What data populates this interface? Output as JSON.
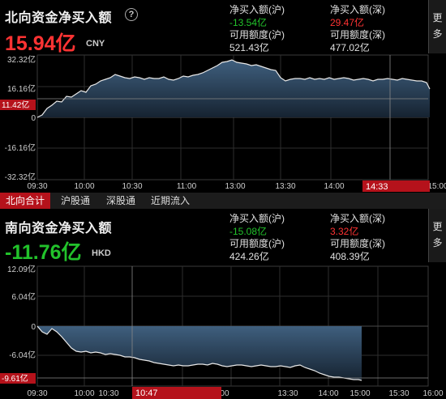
{
  "north": {
    "title": "北向资金净买入额",
    "net_value": "15.94亿",
    "currency": "CNY",
    "stats": [
      {
        "label": "净买入额(沪)",
        "value": "-13.54亿",
        "color": "#22c22b"
      },
      {
        "label": "净买入额(深)",
        "value": "29.47亿",
        "color": "#ff3333"
      },
      {
        "label": "可用额度(沪)",
        "value": "521.43亿",
        "color": "#e0e0e0"
      },
      {
        "label": "可用额度(深)",
        "value": "477.02亿",
        "color": "#e0e0e0"
      }
    ],
    "more_label": [
      "更",
      "多"
    ],
    "y_ticks": [
      "32.32亿",
      "16.16亿",
      "0",
      "-16.16亿",
      "-32.32亿"
    ],
    "x_ticks": [
      "09:30",
      "10:00",
      "10:30",
      "11:00",
      "13:00",
      "13:30",
      "14:00",
      "15:00"
    ],
    "last_value_tag": "11.42亿",
    "cursor_time": "14:33"
  },
  "tabs": [
    {
      "label": "北向合计",
      "active": true
    },
    {
      "label": "沪股通",
      "active": false
    },
    {
      "label": "深股通",
      "active": false
    },
    {
      "label": "近期流入",
      "active": false
    }
  ],
  "south": {
    "title": "南向资金净买入额",
    "net_value": "-11.76亿",
    "currency": "HKD",
    "stats": [
      {
        "label": "净买入额(沪)",
        "value": "-15.08亿",
        "color": "#22c22b"
      },
      {
        "label": "净买入额(深)",
        "value": "3.32亿",
        "color": "#ff3333"
      },
      {
        "label": "可用额度(沪)",
        "value": "424.26亿",
        "color": "#e0e0e0"
      },
      {
        "label": "可用额度(深)",
        "value": "408.39亿",
        "color": "#e0e0e0"
      }
    ],
    "more_label": [
      "更",
      "多"
    ],
    "y_ticks": [
      "12.09亿",
      "6.04亿",
      "0",
      "-6.04亿",
      "-9.61亿"
    ],
    "x_ticks": [
      "09:30",
      "10:00",
      "10:30",
      "13:00",
      "13:30",
      "14:00",
      "15:00",
      "15:30",
      "16:00"
    ],
    "cursor_time": "10:47"
  },
  "colors": {
    "up": "#ff3333",
    "down": "#22c22b",
    "accent": "#b5121b",
    "line": "#e8e8e8"
  },
  "chart_data": [
    {
      "type": "area",
      "title": "北向资金净买入额",
      "ylim": [
        -32.32,
        32.32
      ],
      "x": [
        "09:30",
        "09:40",
        "09:50",
        "10:00",
        "10:10",
        "10:20",
        "10:30",
        "10:40",
        "10:50",
        "11:00",
        "11:10",
        "11:20",
        "11:30",
        "13:00",
        "13:10",
        "13:20",
        "13:30",
        "13:40",
        "13:50",
        "14:00",
        "14:10",
        "14:20",
        "14:30",
        "14:33",
        "14:40",
        "14:50",
        "15:00"
      ],
      "series": [
        {
          "values": [
            0,
            4,
            11,
            16,
            22,
            25,
            24,
            24,
            25,
            26,
            24,
            26,
            28,
            31,
            29,
            27,
            23,
            24,
            24,
            25,
            22,
            23,
            22,
            23,
            22,
            21,
            16
          ]
        }
      ]
    },
    {
      "type": "area",
      "title": "南向资金净买入额",
      "ylim": [
        -12.09,
        12.09
      ],
      "x": [
        "09:30",
        "09:40",
        "09:50",
        "10:00",
        "10:10",
        "10:20",
        "10:30",
        "10:40",
        "10:50",
        "11:00",
        "11:30",
        "13:00",
        "13:30",
        "14:00",
        "14:30",
        "15:00"
      ],
      "series": [
        {
          "values": [
            0,
            -1,
            -2,
            -6.0,
            -6.5,
            -6.8,
            -7.0,
            -7.2,
            -7.5,
            -8.0,
            -8.5,
            -8.2,
            -8.5,
            -9.0,
            -10.5,
            -11.0
          ]
        }
      ]
    }
  ]
}
